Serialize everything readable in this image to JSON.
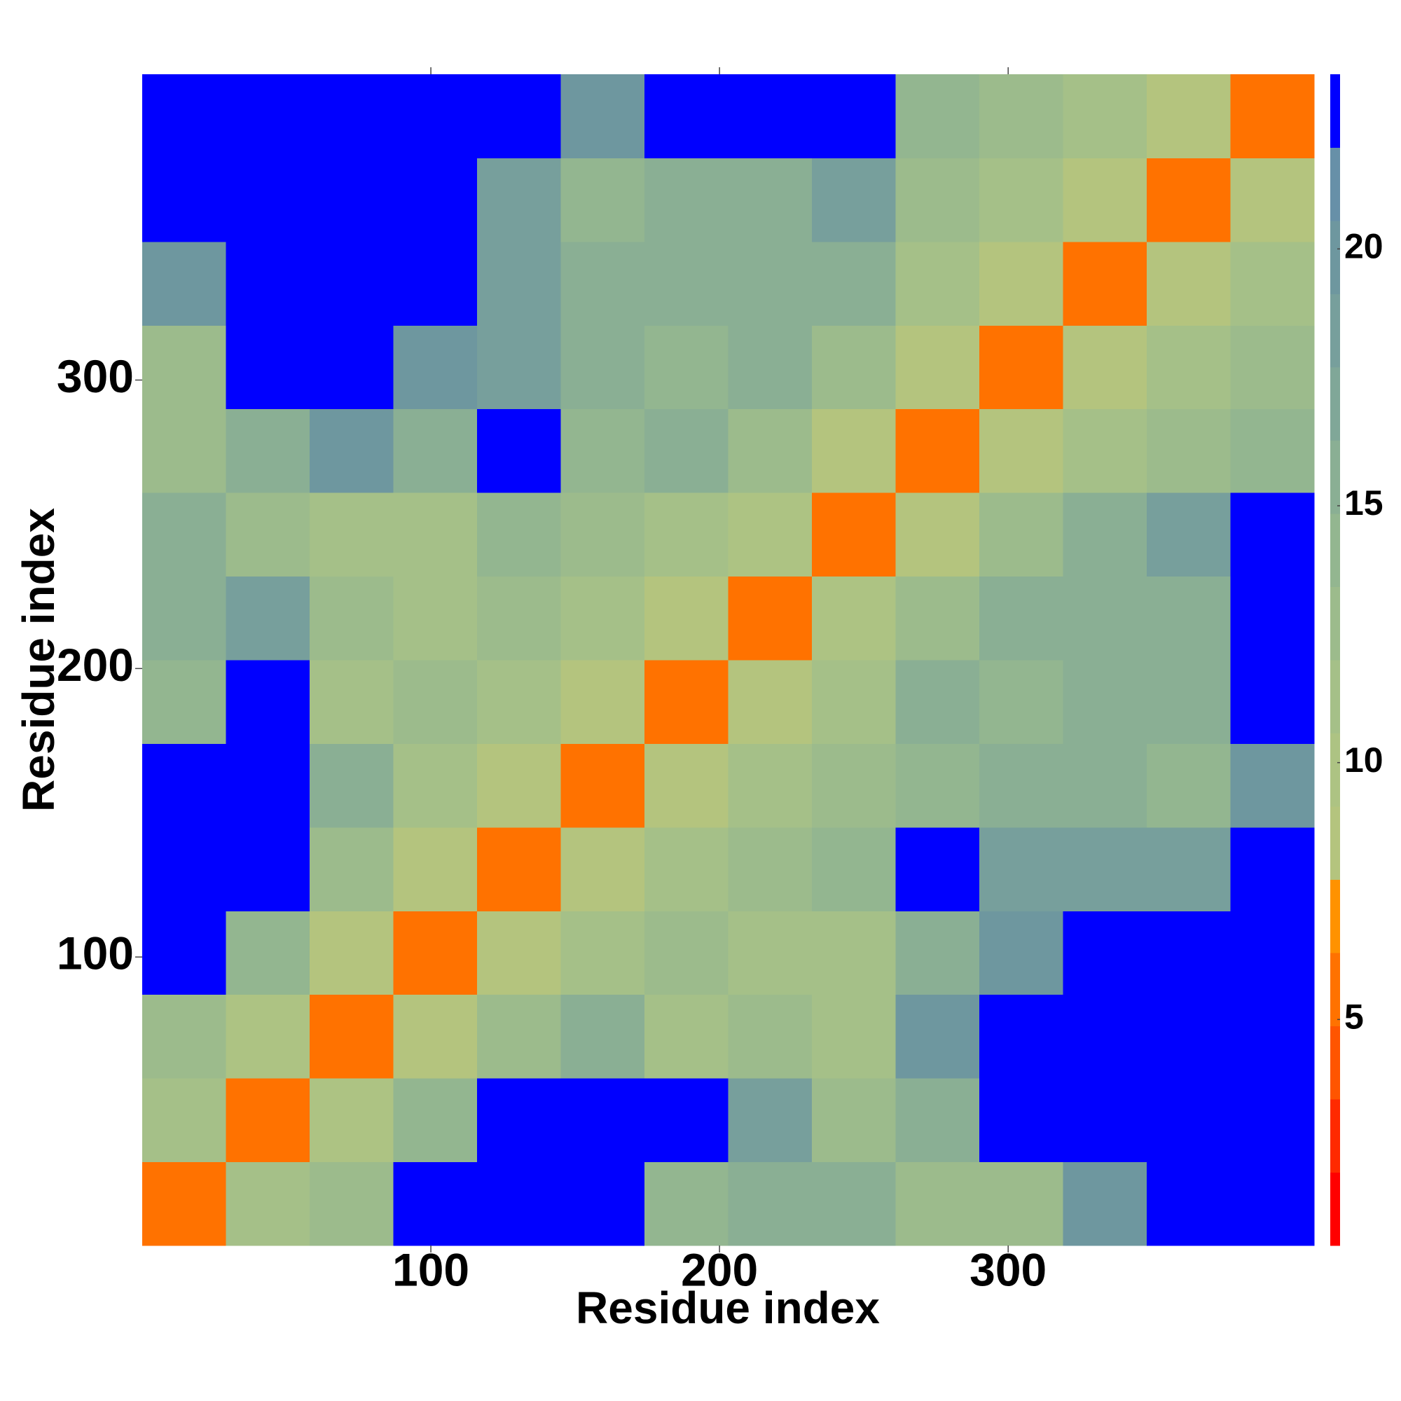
{
  "chart_data": {
    "type": "heatmap",
    "xlabel": "Residue index",
    "ylabel": "Residue index",
    "bins": [
      0,
      29,
      58,
      87,
      116,
      145,
      174,
      203,
      232,
      261,
      290,
      319,
      348,
      377,
      406
    ],
    "z": [
      [
        5,
        11,
        13,
        24,
        24,
        24,
        14,
        15,
        16,
        13,
        13,
        20,
        24,
        24
      ],
      [
        11,
        5,
        10,
        14,
        24,
        24,
        24,
        19,
        13,
        15,
        24,
        24,
        24,
        24
      ],
      [
        13,
        10,
        5,
        9,
        13,
        16,
        11,
        12,
        11,
        20,
        24,
        24,
        24,
        24
      ],
      [
        24,
        14,
        9,
        5,
        9,
        11,
        12,
        11,
        11,
        16,
        20,
        24,
        24,
        24
      ],
      [
        24,
        24,
        13,
        9,
        5,
        9,
        11,
        13,
        14,
        22,
        19,
        18,
        18,
        24
      ],
      [
        24,
        24,
        16,
        11,
        9,
        5,
        9,
        11,
        12,
        14,
        15,
        15,
        14,
        20
      ],
      [
        14,
        24,
        11,
        12,
        11,
        9,
        5,
        9,
        11,
        15,
        14,
        15,
        15,
        24
      ],
      [
        15,
        19,
        12,
        11,
        13,
        11,
        9,
        5,
        10,
        13,
        16,
        15,
        16,
        24
      ],
      [
        16,
        13,
        11,
        11,
        14,
        12,
        11,
        10,
        5,
        9,
        13,
        16,
        18,
        24
      ],
      [
        13,
        15,
        20,
        16,
        22,
        14,
        15,
        13,
        9,
        5,
        9,
        11,
        12,
        14
      ],
      [
        13,
        24,
        24,
        20,
        19,
        15,
        14,
        16,
        13,
        9,
        5,
        9,
        11,
        13
      ],
      [
        20,
        24,
        24,
        24,
        18,
        15,
        15,
        15,
        16,
        11,
        9,
        5,
        9,
        11
      ],
      [
        24,
        24,
        24,
        24,
        18,
        14,
        15,
        16,
        18,
        12,
        11,
        9,
        5,
        9
      ],
      [
        24,
        24,
        24,
        24,
        24,
        20,
        24,
        24,
        24,
        14,
        13,
        11,
        9,
        5
      ]
    ],
    "xlim": [
      0,
      406
    ],
    "ylim": [
      0,
      406
    ],
    "xticks": [
      100,
      200,
      300
    ],
    "yticks": [
      100,
      200,
      300
    ],
    "colorbar": {
      "clim": [
        0.6,
        23.4
      ],
      "ticks": [
        5,
        10,
        15,
        20
      ],
      "colors": [
        "#ff0000",
        "#ff2a00",
        "#ff5500",
        "#ff7200",
        "#ff9200",
        "#b4c47e",
        "#adc383",
        "#a5c088",
        "#9cbb8c",
        "#93b690",
        "#8aaf94",
        "#80a798",
        "#779f9c",
        "#6e979f",
        "#6790a8",
        "#0000ff"
      ]
    }
  }
}
